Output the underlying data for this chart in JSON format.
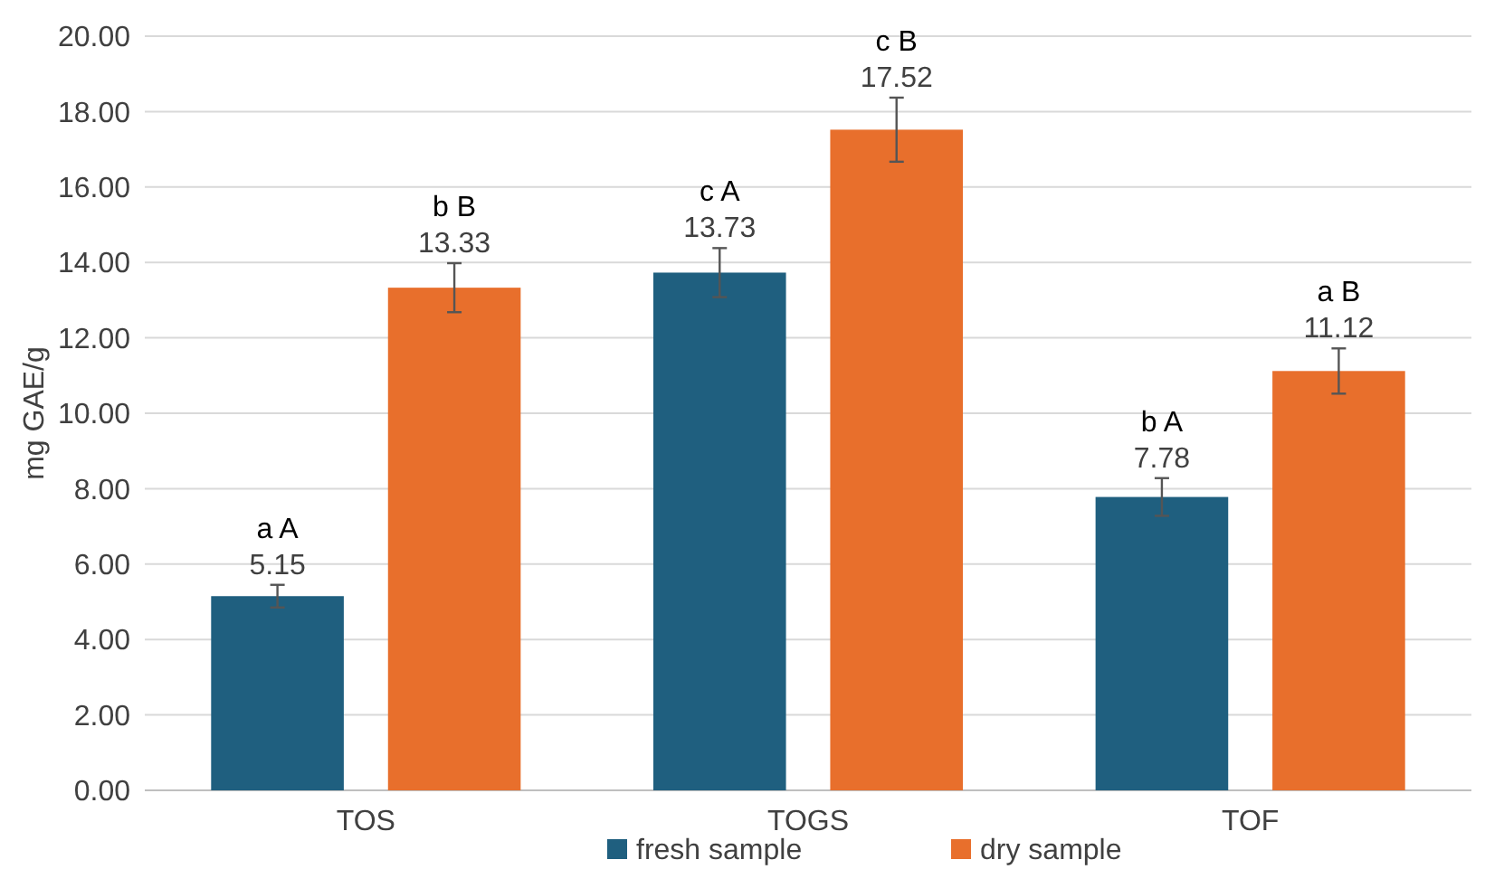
{
  "chart_data": {
    "type": "bar",
    "ylabel": "mg GAE/g",
    "categories": [
      "TOS",
      "TOGS",
      "TOF"
    ],
    "series": [
      {
        "name": "fresh sample",
        "color": "#1f5f7f",
        "values": [
          5.15,
          13.73,
          7.78
        ],
        "errors": [
          0.3,
          0.65,
          0.5
        ]
      },
      {
        "name": "dry sample",
        "color": "#e86f2c",
        "values": [
          13.33,
          17.52,
          11.12
        ],
        "errors": [
          0.65,
          0.85,
          0.6
        ]
      }
    ],
    "ylim": [
      0,
      20
    ],
    "yticks": [
      {
        "value": 0,
        "label": "0.00"
      },
      {
        "value": 2,
        "label": "2.00"
      },
      {
        "value": 4,
        "label": "4.00"
      },
      {
        "value": 6,
        "label": "6.00"
      },
      {
        "value": 8,
        "label": "8.00"
      },
      {
        "value": 10,
        "label": "10.00"
      },
      {
        "value": 12,
        "label": "12.00"
      },
      {
        "value": 14,
        "label": "14.00"
      },
      {
        "value": 16,
        "label": "16.00"
      },
      {
        "value": 18,
        "label": "18.00"
      },
      {
        "value": 20,
        "label": "20.00"
      }
    ],
    "grid": "y",
    "legend": "bottom",
    "data_labels": true,
    "annotations": [
      "a A",
      "b B",
      "c A",
      "c B",
      "b A",
      "a B"
    ]
  }
}
